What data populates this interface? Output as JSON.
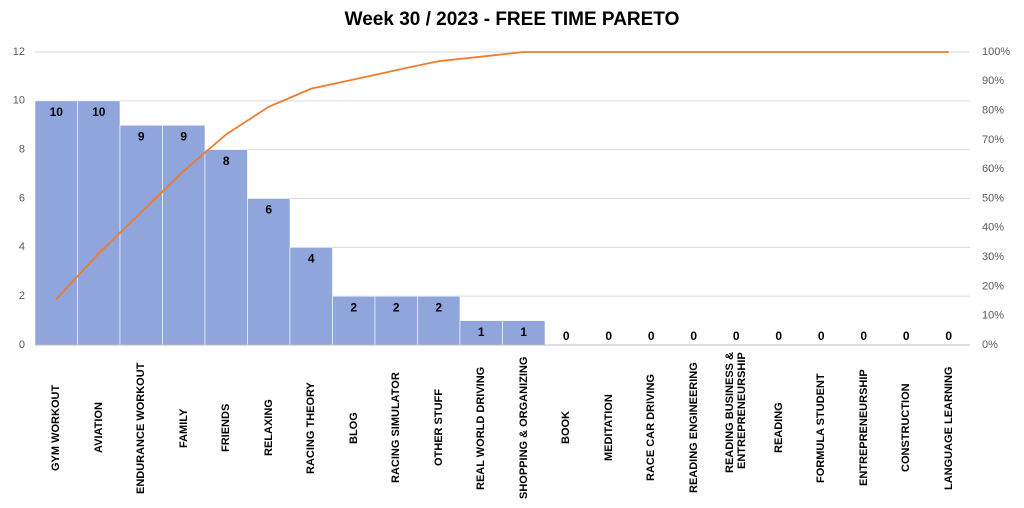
{
  "chart_data": {
    "type": "pareto",
    "title": "Week 30 / 2023 - FREE TIME PARETO",
    "categories": [
      "GYM WORKOUT",
      "AVIATION",
      "ENDURANCE WORKOUT",
      "FAMILY",
      "FRIENDS",
      "RELAXING",
      "RACING THEORY",
      "BLOG",
      "RACING SIMULATOR",
      "OTHER STUFF",
      "REAL WORLD DRIVING",
      "SHOPPING & ORGANIZING",
      "BOOK",
      "MEDITATION",
      "RACE CAR DRIVING",
      "READING ENGINEERING",
      "READING BUSINESS & ENTREPRENEURSHIP",
      "READING",
      "FORMULA STUDENT",
      "ENTREPRENEURSHIP",
      "CONSTRUCTION",
      "LANGUAGE LEARNING"
    ],
    "series": [
      {
        "color": "#8fa5dc",
        "values": [
          10,
          10,
          9,
          9,
          8,
          6,
          4,
          2,
          2,
          2,
          1,
          1,
          0,
          0,
          0,
          0,
          0,
          0,
          0,
          0,
          0,
          0
        ]
      },
      {
        "color": "#ed7d31",
        "axis": "y2",
        "values": [
          15.6,
          31.3,
          45.3,
          59.4,
          71.9,
          81.3,
          87.5,
          90.6,
          93.8,
          96.9,
          98.4,
          100,
          100,
          100,
          100,
          100,
          100,
          100,
          100,
          100,
          100,
          100
        ]
      }
    ],
    "ylim": [
      0,
      12
    ],
    "yticks": [
      0,
      2,
      4,
      6,
      8,
      10,
      12
    ],
    "y2lim": [
      0,
      100
    ],
    "y2ticks": [
      {
        "value": 0,
        "label": "0%"
      },
      {
        "value": 10,
        "label": "10%"
      },
      {
        "value": 20,
        "label": "20%"
      },
      {
        "value": 30,
        "label": "30%"
      },
      {
        "value": 40,
        "label": "40%"
      },
      {
        "value": 50,
        "label": "50%"
      },
      {
        "value": 60,
        "label": "60%"
      },
      {
        "value": 70,
        "label": "70%"
      },
      {
        "value": 80,
        "label": "80%"
      },
      {
        "value": 90,
        "label": "90%"
      },
      {
        "value": 100,
        "label": "100%"
      }
    ],
    "grid": true
  }
}
